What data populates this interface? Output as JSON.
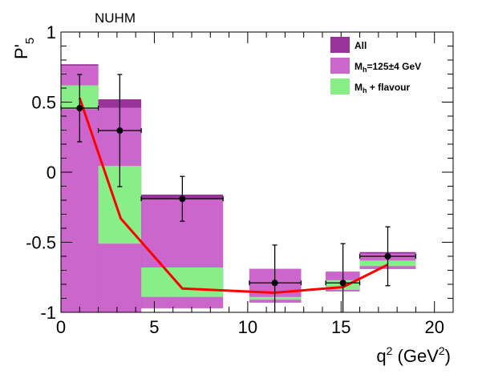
{
  "chart_data": {
    "type": "band-points",
    "title": "NUHM",
    "xlabel": [
      "q",
      "2",
      " (GeV",
      "2",
      ")"
    ],
    "ylabel": [
      "P'",
      "5"
    ],
    "xlim": [
      0,
      21
    ],
    "ylim": [
      -1,
      1
    ],
    "xticks": [
      0,
      5,
      10,
      15,
      20
    ],
    "yticks": [
      -1,
      -0.5,
      0,
      0.5,
      1
    ],
    "bins": [
      [
        0,
        2
      ],
      [
        2,
        4.3
      ],
      [
        4.3,
        8.68
      ],
      [
        10.09,
        12.86
      ],
      [
        14.18,
        16
      ],
      [
        16,
        19
      ]
    ],
    "bands": [
      {
        "name": [
          "All"
        ],
        "color": "#993399",
        "low": [
          -1,
          -1,
          -0.97,
          -0.93,
          -0.85,
          -0.69
        ],
        "high": [
          0.77,
          0.52,
          -0.16,
          -0.69,
          -0.71,
          -0.57
        ]
      },
      {
        "name": [
          "M",
          "h",
          "=125±4 GeV"
        ],
        "color": "#cc66cc",
        "low": [
          -1,
          -1,
          -0.97,
          -0.93,
          -0.85,
          -0.69
        ],
        "high": [
          0.76,
          0.46,
          -0.19,
          -0.69,
          -0.71,
          -0.58
        ]
      },
      {
        "name": [
          "M",
          "h",
          " + flavour"
        ],
        "color": "#88ee88",
        "low": [
          0.45,
          -0.51,
          -0.89,
          -0.91,
          -0.84,
          -0.67
        ],
        "high": [
          0.62,
          0.045,
          -0.68,
          -0.89,
          -0.77,
          -0.63
        ]
      }
    ],
    "points": {
      "x": [
        1,
        3.15,
        6.5,
        11.45,
        15.1,
        17.5
      ],
      "values": [
        0.457,
        0.297,
        -0.19,
        -0.79,
        -0.79,
        -0.6
      ],
      "yerr": [
        0.24,
        0.4,
        0.16,
        0.27,
        0.28,
        0.21
      ],
      "xlow": [
        0,
        2,
        4.3,
        10.09,
        14.18,
        16
      ],
      "xhigh": [
        2,
        4.3,
        8.68,
        12.86,
        16,
        19
      ],
      "color": "#000000"
    },
    "curve": {
      "x": [
        1,
        3.2,
        6.5,
        11.4,
        15.1,
        17.5
      ],
      "values": [
        0.53,
        -0.33,
        -0.83,
        -0.86,
        -0.82,
        -0.66
      ],
      "color": "#ff0000"
    }
  }
}
